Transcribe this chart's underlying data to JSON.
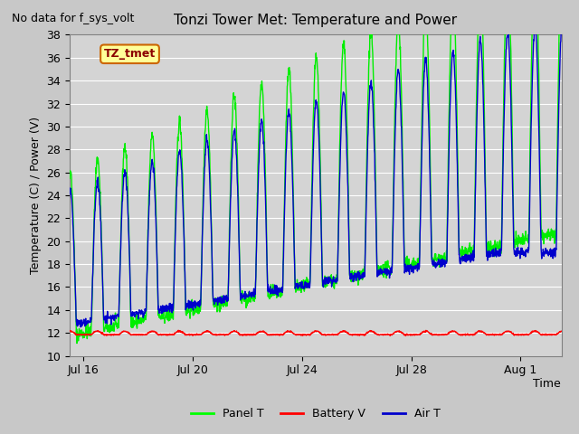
{
  "title": "Tonzi Tower Met: Temperature and Power",
  "top_left_text": "No data for f_sys_volt",
  "ylabel": "Temperature (C) / Power (V)",
  "xlabel": "Time",
  "ylim": [
    10,
    38
  ],
  "yticks": [
    10,
    12,
    14,
    16,
    18,
    20,
    22,
    24,
    26,
    28,
    30,
    32,
    34,
    36,
    38
  ],
  "xtick_labels": [
    "Jul 16",
    "Jul 20",
    "Jul 24",
    "Jul 28",
    "Aug 1"
  ],
  "xtick_positions": [
    1,
    5,
    9,
    13,
    17
  ],
  "xlim": [
    0.5,
    18.5
  ],
  "legend_entries": [
    "Panel T",
    "Battery V",
    "Air T"
  ],
  "legend_colors": [
    "#00ff00",
    "#ff0000",
    "#0000cc"
  ],
  "line_colors": {
    "panel": "#00ee00",
    "battery": "#ff0000",
    "air": "#0000cc"
  },
  "annotation_text": "TZ_tmet",
  "annotation_box_color": "#ffff99",
  "annotation_box_edge": "#cc6600",
  "fig_bg_color": "#c8c8c8",
  "plot_bg_color": "#d4d4d4",
  "grid_color": "#ffffff",
  "n_points": 1776
}
